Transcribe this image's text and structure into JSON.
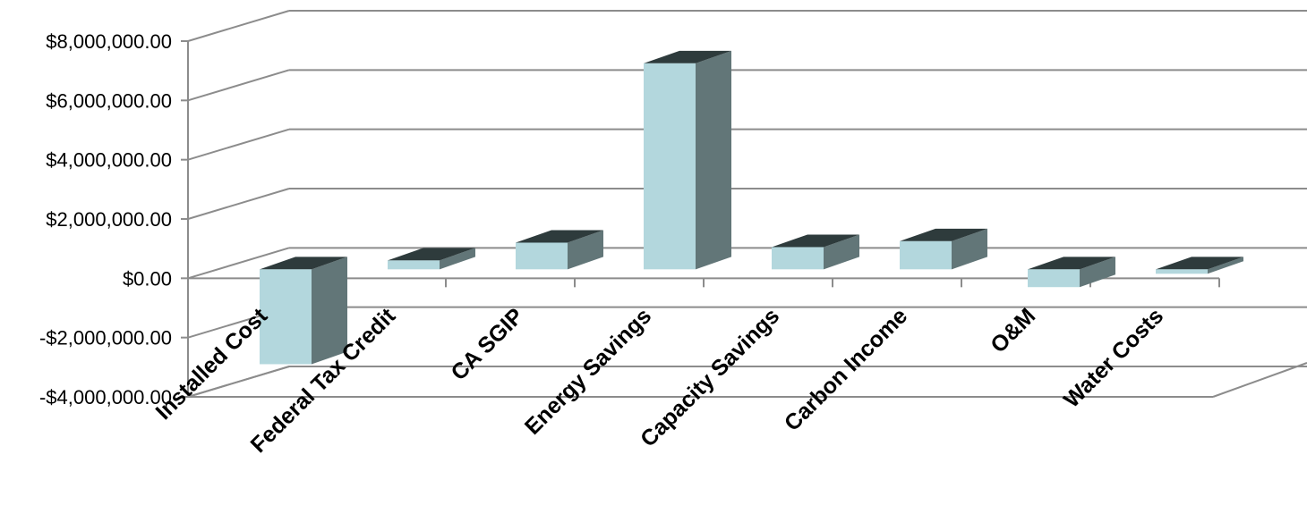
{
  "chart_data": {
    "type": "bar",
    "title": "",
    "xlabel": "",
    "ylabel": "",
    "ylim": [
      -4000000,
      8000000
    ],
    "yticks": [
      8000000,
      6000000,
      4000000,
      2000000,
      0,
      -2000000,
      -4000000
    ],
    "ytick_labels": [
      "$8,000,000.00",
      "$6,000,000.00",
      "$4,000,000.00",
      "$2,000,000.00",
      "$0.00",
      "-$2,000,000.00",
      "-$4,000,000.00"
    ],
    "grid": true,
    "legend": "none",
    "style": "3d-column",
    "categories": [
      "Installed Cost",
      "Federal Tax Credit",
      "CA SGIP",
      "Energy Savings",
      "Capacity Savings",
      "Carbon Income",
      "O&M",
      "Water Costs"
    ],
    "series": [
      {
        "values": [
          -3200000,
          300000,
          900000,
          6950000,
          750000,
          950000,
          -600000,
          -150000
        ]
      }
    ],
    "colors": {
      "front": "#b3d7dd",
      "side": "#627678",
      "top": "#2e3b3c",
      "grid": "#8c8c8c",
      "text": "#000000"
    }
  }
}
